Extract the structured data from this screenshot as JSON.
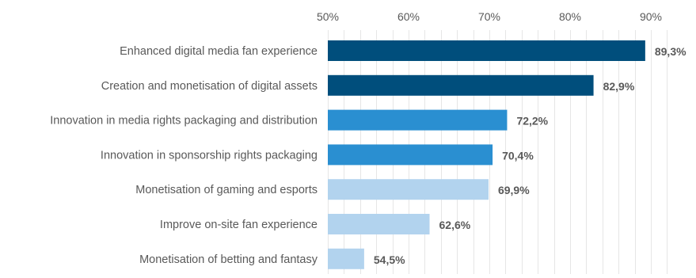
{
  "chart_data": {
    "type": "bar",
    "orientation": "horizontal",
    "title": "",
    "xlabel": "",
    "ylabel": "",
    "xlim": [
      50,
      93
    ],
    "x_ticks": [
      50,
      60,
      70,
      80,
      90
    ],
    "x_tick_labels": [
      "50%",
      "60%",
      "70%",
      "80%",
      "90%"
    ],
    "x_axis_position": "top",
    "grid": true,
    "grid_step": 2,
    "legend": "none",
    "categories": [
      "Enhanced digital media fan experience",
      "Creation and monetisation of digital assets",
      "Innovation in media rights packaging and distribution",
      "Innovation in sponsorship rights packaging",
      "Monetisation of gaming and esports",
      "Improve on-site fan experience",
      "Monetisation of betting and fantasy"
    ],
    "values": [
      89.3,
      82.9,
      72.2,
      70.4,
      69.9,
      62.6,
      54.5
    ],
    "value_labels": [
      "89,3%",
      "82,9%",
      "72,2%",
      "70,4%",
      "69,9%",
      "62,6%",
      "54,5%"
    ],
    "bar_colors": [
      "#004e7c",
      "#004e7c",
      "#2a8fd1",
      "#2a8fd1",
      "#b2d3ee",
      "#b2d3ee",
      "#b2d3ee"
    ],
    "colors": {
      "grid": "#e6e6e6",
      "text": "#595959"
    }
  }
}
